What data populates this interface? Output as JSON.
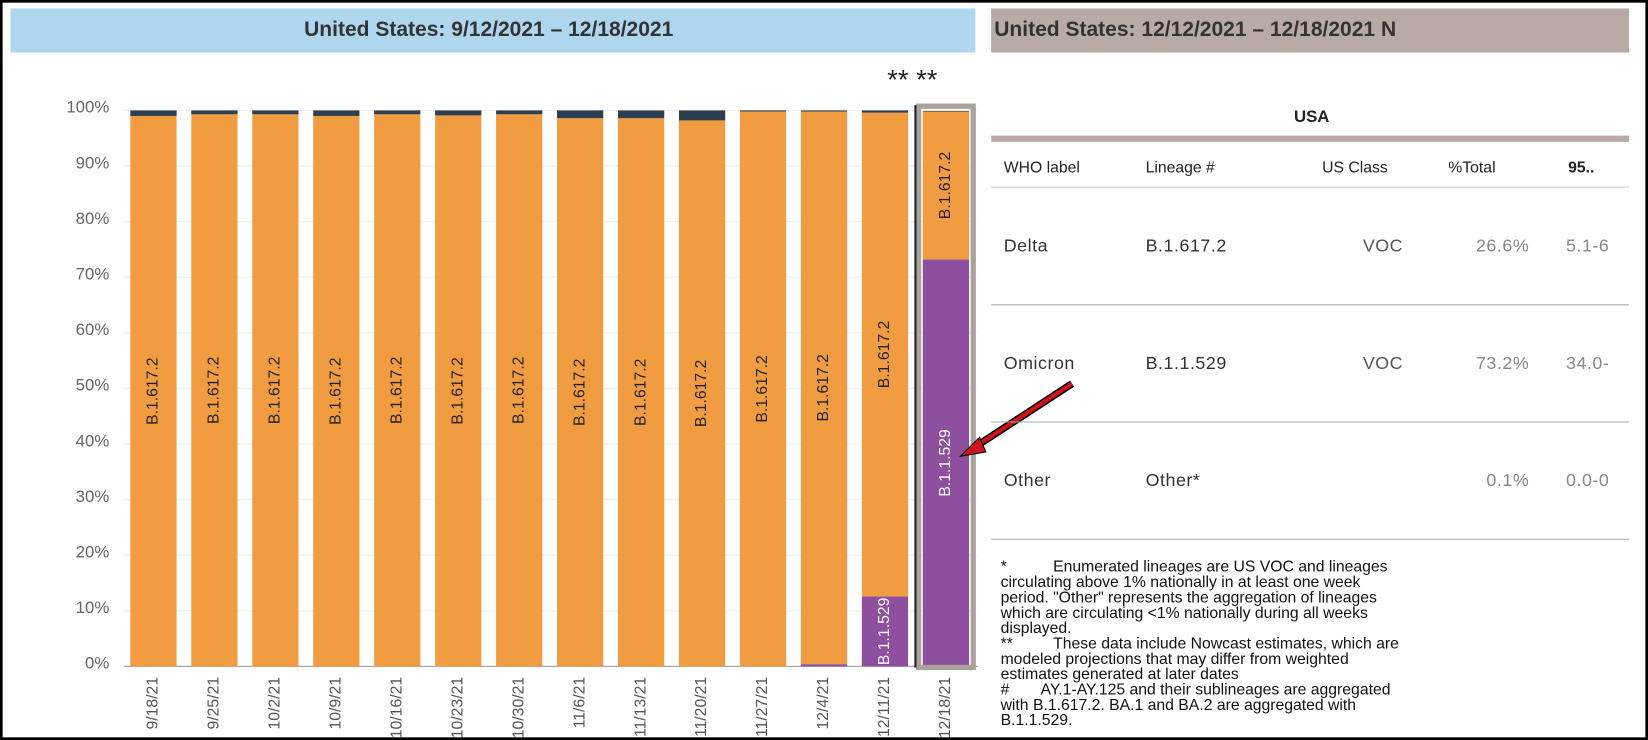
{
  "chart_data": {
    "type": "stacked_bar",
    "title": "United States: 9/12/2021 – 12/18/2021",
    "annotation": "** **",
    "categories": [
      "9/18/21",
      "9/25/21",
      "10/2/21",
      "10/9/21",
      "10/16/21",
      "10/23/21",
      "10/30/21",
      "11/6/21",
      "11/13/21",
      "11/20/21",
      "11/27/21",
      "12/4/21",
      "12/11/21",
      "12/18/21"
    ],
    "series": [
      {
        "name": "B.1.1.529",
        "color": "#8e4f9e",
        "values": [
          0,
          0,
          0,
          0,
          0,
          0,
          0,
          0,
          0,
          0,
          0,
          0.4,
          12.6,
          73.2
        ]
      },
      {
        "name": "B.1.617.2",
        "color": "#f29c42",
        "values": [
          99.0,
          99.3,
          99.3,
          99.0,
          99.3,
          99.1,
          99.3,
          98.6,
          98.6,
          98.2,
          99.8,
          99.4,
          87.0,
          26.6
        ]
      },
      {
        "name": "Other",
        "color": "#2d3e50",
        "values": [
          1.0,
          0.7,
          0.7,
          1.0,
          0.7,
          0.9,
          0.7,
          1.4,
          1.4,
          1.8,
          0.2,
          0.2,
          0.4,
          0.1
        ]
      }
    ],
    "ylim": [
      0,
      100
    ],
    "yticks": [
      {
        "value": 0,
        "label": "0%"
      },
      {
        "value": 10,
        "label": "10%"
      },
      {
        "value": 20,
        "label": "20%"
      },
      {
        "value": 30,
        "label": "30%"
      },
      {
        "value": 40,
        "label": "40%"
      },
      {
        "value": 50,
        "label": "50%"
      },
      {
        "value": 60,
        "label": "60%"
      },
      {
        "value": 70,
        "label": "70%"
      },
      {
        "value": 80,
        "label": "80%"
      },
      {
        "value": 90,
        "label": "90%"
      },
      {
        "value": 100,
        "label": "100%"
      }
    ],
    "grid": true
  },
  "table": {
    "header": "United States: 12/12/2021 – 12/18/2021 N",
    "title": "USA",
    "columns": [
      "WHO label",
      "Lineage #",
      "US Class",
      "%Total",
      "95.."
    ],
    "rows": [
      {
        "label": "Delta",
        "lineage": "B.1.617.2",
        "class": "VOC",
        "total": "26.6%",
        "ci": "5.1-6"
      },
      {
        "label": "Omicron",
        "lineage": "B.1.1.529",
        "class": "VOC",
        "total": "73.2%",
        "ci": "34.0-"
      },
      {
        "label": "Other",
        "lineage": "Other*",
        "total": "0.1%",
        "ci": "0.0-0"
      }
    ]
  },
  "notes": [
    {
      "mark": "*",
      "lines": [
        "Enumerated lineages are US VOC and lineages",
        "circulating above 1% nationally in at least one week",
        "period. \"Other\" represents the aggregation of lineages",
        "which are circulating <1% nationally during all weeks",
        "displayed."
      ]
    },
    {
      "mark": "**",
      "lines": [
        "These data include Nowcast estimates, which are",
        "modeled projections that may differ from weighted",
        "estimates generated at later dates"
      ]
    },
    {
      "mark": "#",
      "lines": [
        "AY.1-AY.125 and their sublineages are aggregated",
        "with B.1.617.2. BA.1 and BA.2 are aggregated with",
        "B.1.1.529."
      ]
    }
  ]
}
